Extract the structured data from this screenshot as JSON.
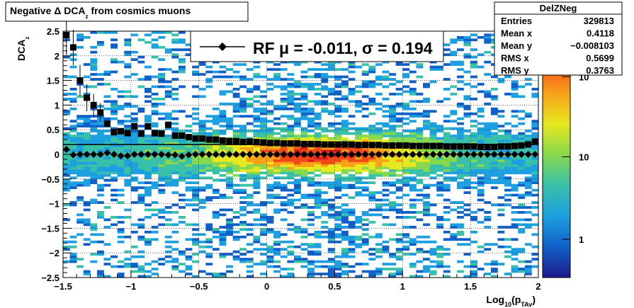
{
  "title": {
    "prefix": "Negative ",
    "delta": "Δ",
    "main": " DCA",
    "sub": "z",
    "suffix": " from cosmics muons"
  },
  "stats_box": {
    "name": "DelZNeg",
    "rows": [
      {
        "label": "Entries",
        "value": "329813"
      },
      {
        "label": "Mean x",
        "value": "0.4118"
      },
      {
        "label": "Mean y",
        "value": "−0.008103"
      },
      {
        "label": "RMS x",
        "value": "0.5699"
      },
      {
        "label": "RMS y",
        "value": "0.3763"
      }
    ]
  },
  "legend": {
    "text": "RF μ = -0.011, σ =   0.194"
  },
  "x_axis": {
    "label_main": "Log",
    "label_sub": "10",
    "label_paren": "(p",
    "label_sub2": "TAv",
    "label_close": ")",
    "ticks": [
      "−1.5",
      "−1",
      "−0.5",
      "0",
      "0.5",
      "1",
      "1.5",
      "2"
    ]
  },
  "y_axis": {
    "label_main": "DCA",
    "label_sub": "z",
    "ticks": [
      "2.5",
      "2",
      "1.5",
      "1",
      "0.5",
      "0",
      "−0.5",
      "−1",
      "−1.5",
      "−2",
      "−2.5"
    ]
  },
  "color_axis": {
    "ticks": [
      "10",
      "10",
      "1"
    ],
    "scale": "log",
    "palette": [
      "#1f1a8c",
      "#1060c8",
      "#1ca0e0",
      "#38c0a8",
      "#88d84c",
      "#e8e820",
      "#f8a018",
      "#f04818",
      "#d81c1c"
    ]
  },
  "chart_data": {
    "type": "scatter",
    "xlim": [
      -1.5,
      2
    ],
    "ylim": [
      -2.5,
      2.5
    ],
    "grid": true,
    "log_color_scale": true,
    "series": [
      {
        "name": "RF",
        "marker": "diamond",
        "x": [
          -1.475,
          -1.425,
          -1.375,
          -1.325,
          -1.275,
          -1.225,
          -1.175,
          -1.125,
          -1.075,
          -1.025,
          -0.975,
          -0.925,
          -0.875,
          -0.825,
          -0.775,
          -0.725,
          -0.675,
          -0.625,
          -0.575,
          -0.525,
          -0.475,
          -0.425,
          -0.375,
          -0.325,
          -0.275,
          -0.225,
          -0.175,
          -0.125,
          -0.075,
          -0.025,
          0.025,
          0.075,
          0.125,
          0.175,
          0.225,
          0.275,
          0.325,
          0.375,
          0.425,
          0.475,
          0.525,
          0.575,
          0.625,
          0.675,
          0.725,
          0.775,
          0.825,
          0.875,
          0.925,
          0.975,
          1.025,
          1.075,
          1.125,
          1.175,
          1.225,
          1.275,
          1.325,
          1.375,
          1.425,
          1.475,
          1.525,
          1.575,
          1.625,
          1.675,
          1.725,
          1.775,
          1.825,
          1.875,
          1.925,
          1.975
        ],
        "y": [
          0.1,
          -0.01,
          0.0,
          0.0,
          0.0,
          0.0,
          0.03,
          0.0,
          -0.03,
          -0.03,
          0.0,
          0.0,
          0.0,
          0.0,
          0.0,
          -0.01,
          -0.01,
          -0.04,
          -0.01,
          0.0,
          0.0,
          0.0,
          0.0,
          0.0,
          0.0,
          0.0,
          0.0,
          0.0,
          0.0,
          0.0,
          0.0,
          0.0,
          0.0,
          0.0,
          0.0,
          0.0,
          0.0,
          0.0,
          0.0,
          0.0,
          0.0,
          0.0,
          0.0,
          0.0,
          0.0,
          0.0,
          0.0,
          0.0,
          0.0,
          0.0,
          0.0,
          0.0,
          0.0,
          0.0,
          0.0,
          0.0,
          0.0,
          0.0,
          0.0,
          0.0,
          0.0,
          0.0,
          0.0,
          0.0,
          0.0,
          0.0,
          0.0,
          0.0,
          0.0,
          0.0
        ]
      },
      {
        "marker": "square",
        "x": [
          -1.475,
          -1.425,
          -1.375,
          -1.325,
          -1.275,
          -1.225,
          -1.175,
          -1.125,
          -1.075,
          -1.025,
          -0.975,
          -0.925,
          -0.875,
          -0.825,
          -0.775,
          -0.725,
          -0.675,
          -0.625,
          -0.575,
          -0.525,
          -0.475,
          -0.425,
          -0.375,
          -0.325,
          -0.275,
          -0.225,
          -0.175,
          -0.125,
          -0.075,
          -0.025,
          0.025,
          0.075,
          0.125,
          0.175,
          0.225,
          0.275,
          0.325,
          0.375,
          0.425,
          0.475,
          0.525,
          0.575,
          0.625,
          0.675,
          0.725,
          0.775,
          0.825,
          0.875,
          0.925,
          0.975,
          1.025,
          1.075,
          1.125,
          1.175,
          1.225,
          1.275,
          1.325,
          1.375,
          1.425,
          1.475,
          1.525,
          1.575,
          1.625,
          1.675,
          1.725,
          1.775,
          1.825,
          1.875,
          1.925,
          1.975
        ],
        "y": [
          2.42,
          2.17,
          1.5,
          1.15,
          1.0,
          0.85,
          0.62,
          0.45,
          0.47,
          0.43,
          0.57,
          0.42,
          0.57,
          0.43,
          0.42,
          0.6,
          0.38,
          0.38,
          0.35,
          0.32,
          0.32,
          0.3,
          0.3,
          0.28,
          0.27,
          0.27,
          0.25,
          0.26,
          0.25,
          0.24,
          0.23,
          0.23,
          0.22,
          0.22,
          0.22,
          0.21,
          0.21,
          0.21,
          0.2,
          0.2,
          0.2,
          0.2,
          0.2,
          0.19,
          0.19,
          0.19,
          0.19,
          0.18,
          0.18,
          0.18,
          0.18,
          0.17,
          0.17,
          0.17,
          0.17,
          0.17,
          0.16,
          0.16,
          0.16,
          0.16,
          0.16,
          0.15,
          0.15,
          0.15,
          0.16,
          0.16,
          0.17,
          0.18,
          0.2,
          0.26
        ]
      }
    ],
    "reference_line": {
      "y": 0.2,
      "x_from": -1.5,
      "x_to": 2
    }
  }
}
